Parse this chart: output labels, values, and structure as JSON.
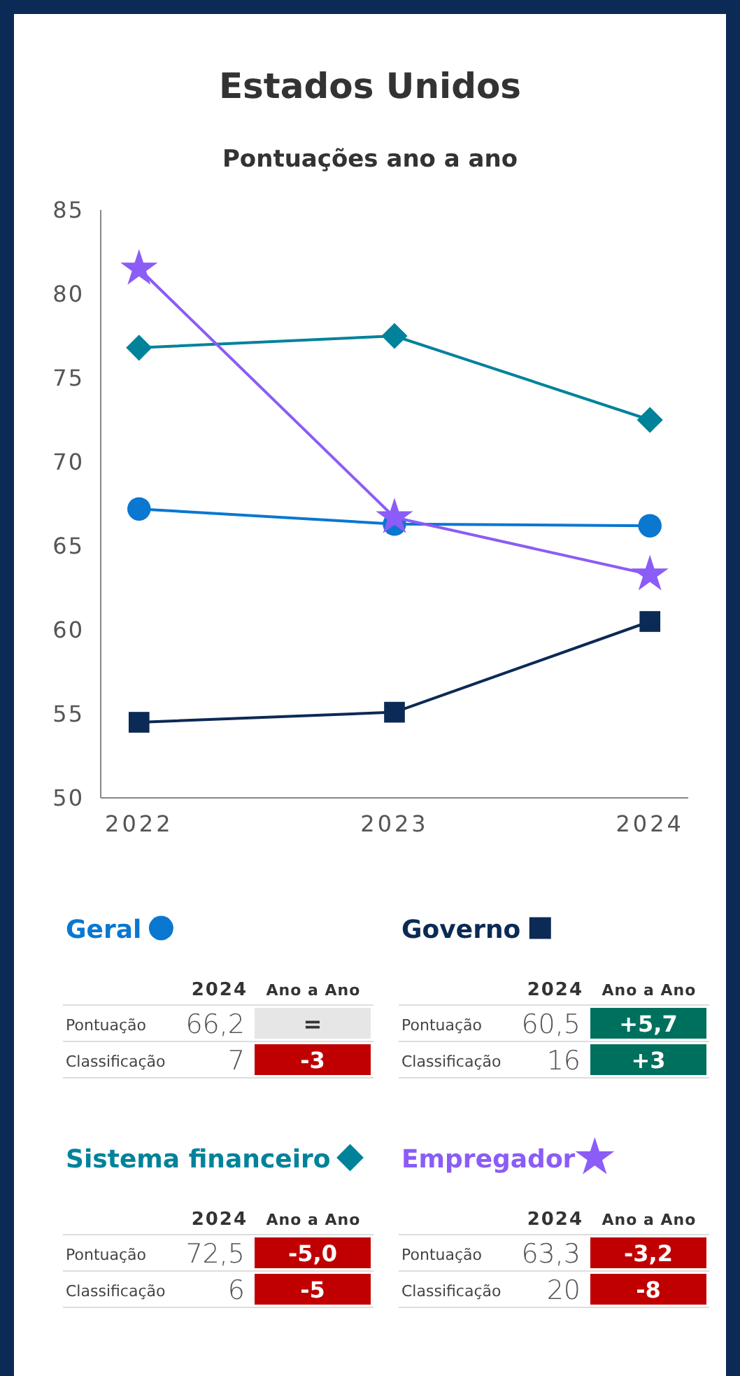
{
  "chart_data": {
    "type": "line",
    "title": "Estados Unidos",
    "subtitle": "Pontuações ano a ano",
    "categories": [
      "2022",
      "2023",
      "2024"
    ],
    "ylim": [
      50,
      85
    ],
    "yticks": [
      50,
      55,
      60,
      65,
      70,
      75,
      80,
      85
    ],
    "grid": false,
    "legend": "bottom",
    "line_style": "solid",
    "series": [
      {
        "name": "Geral",
        "color": "#0a77d0",
        "marker": "circle",
        "values": [
          67.2,
          66.3,
          66.2
        ]
      },
      {
        "name": "Governo",
        "color": "#0b2a55",
        "marker": "square",
        "values": [
          54.5,
          55.1,
          60.5
        ]
      },
      {
        "name": "Sistema financeiro",
        "color": "#00829b",
        "marker": "diamond",
        "values": [
          76.8,
          77.5,
          72.5
        ]
      },
      {
        "name": "Empregador",
        "color": "#8b5cf6",
        "marker": "star",
        "values": [
          81.5,
          66.7,
          63.3
        ]
      }
    ],
    "annotations": [
      "2024",
      "Ano a Ano",
      "Pontuação",
      "66,2",
      "=",
      "Classificação",
      "7",
      "-3",
      "2024",
      "Ano a Ano",
      "Pontuação",
      "60,5",
      "+5,7",
      "Classificação",
      "16",
      "+3",
      "2024",
      "Ano a Ano",
      "Pontuação",
      "72,5",
      "-5,0",
      "Classificação",
      "6",
      "-5",
      "2024",
      "Ano a Ano",
      "Pontuação",
      "63,3",
      "-3,2",
      "Classificação",
      "20",
      "-8"
    ]
  }
}
